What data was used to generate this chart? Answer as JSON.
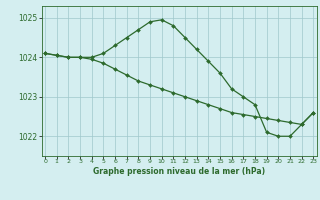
{
  "line1_x": [
    0,
    1,
    2,
    3,
    4,
    5,
    6,
    7,
    8,
    9,
    10,
    11,
    12,
    13,
    14,
    15,
    16,
    17,
    18,
    19,
    20,
    21,
    22,
    23
  ],
  "line1_y": [
    1024.1,
    1024.05,
    1024.0,
    1024.0,
    1024.0,
    1024.1,
    1024.3,
    1024.5,
    1024.7,
    1024.9,
    1024.95,
    1024.8,
    1024.5,
    1024.2,
    1023.9,
    1023.6,
    1023.2,
    1023.0,
    1022.8,
    1022.1,
    1022.0,
    1022.0,
    1022.3,
    1022.6
  ],
  "line2_x": [
    0,
    1,
    2,
    3,
    4,
    5,
    6,
    7,
    8,
    9,
    10,
    11,
    12,
    13,
    14,
    15,
    16,
    17,
    18,
    19,
    20,
    21,
    22,
    23
  ],
  "line2_y": [
    1024.1,
    1024.05,
    1024.0,
    1024.0,
    1023.95,
    1023.85,
    1023.7,
    1023.55,
    1023.4,
    1023.3,
    1023.2,
    1023.1,
    1023.0,
    1022.9,
    1022.8,
    1022.7,
    1022.6,
    1022.55,
    1022.5,
    1022.45,
    1022.4,
    1022.35,
    1022.3,
    1022.6
  ],
  "ylim": [
    1021.5,
    1025.3
  ],
  "yticks": [
    1022,
    1023,
    1024,
    1025
  ],
  "xlim": [
    -0.3,
    23.3
  ],
  "xticks": [
    0,
    1,
    2,
    3,
    4,
    5,
    6,
    7,
    8,
    9,
    10,
    11,
    12,
    13,
    14,
    15,
    16,
    17,
    18,
    19,
    20,
    21,
    22,
    23
  ],
  "xlabel": "Graphe pression niveau de la mer (hPa)",
  "line_color": "#2d6a2d",
  "bg_color": "#d4eef0",
  "grid_color": "#a0c8cc",
  "marker": "D",
  "markersize": 2.0,
  "linewidth": 0.9
}
